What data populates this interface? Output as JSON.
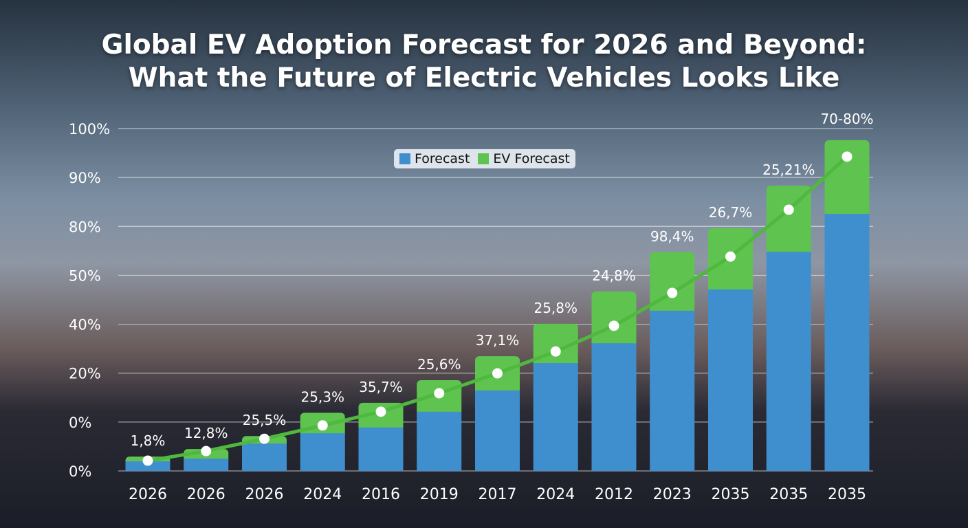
{
  "title_lines": [
    "Global EV Adoption Forecast for 2026 and Beyond:",
    "What the Future of Electric Vehicles Looks Like"
  ],
  "chart_data": {
    "type": "bar",
    "stacked": true,
    "title": "Global EV Adoption Forecast for 2026 and Beyond: What the Future of Electric Vehicles Looks Like",
    "categories": [
      "2026",
      "2026",
      "2026",
      "2024",
      "2016",
      "2019",
      "2017",
      "2024",
      "2012",
      "2023",
      "2035",
      "2035",
      "2035"
    ],
    "y_tick_labels": [
      "0%",
      "0%",
      "20%",
      "40%",
      "50%",
      "80%",
      "90%",
      "100%"
    ],
    "ylim": [
      0,
      100
    ],
    "grid": true,
    "legend_placement": "top-center",
    "series": [
      {
        "name": "Forecast",
        "color": "#3f8fcf",
        "values": [
          2.8,
          3.6,
          8.0,
          11,
          12.7,
          17.3,
          23.5,
          31.5,
          37.3,
          46.8,
          53,
          64,
          75.1
        ]
      },
      {
        "name": "EV Forecast",
        "color": "#5ec34f",
        "values": [
          1.4,
          2.8,
          2.2,
          6,
          7.2,
          9.2,
          10,
          11.5,
          15.1,
          17.1,
          17.9,
          19.3,
          21.5
        ]
      }
    ],
    "line": {
      "color": "#4fb83e",
      "values": [
        3,
        5.8,
        9.4,
        13.3,
        17.3,
        22.7,
        28.5,
        34.9,
        42.4,
        52,
        62.6,
        76.3,
        91.8
      ]
    },
    "data_labels": [
      "1,8%",
      "12,8%",
      "25,5%",
      "25,3%",
      "35,7%",
      "25,6%",
      "37,1%",
      "25,8%",
      "24,8%",
      "98,4%",
      "26,7%",
      "25,21%",
      "70-80%"
    ]
  }
}
